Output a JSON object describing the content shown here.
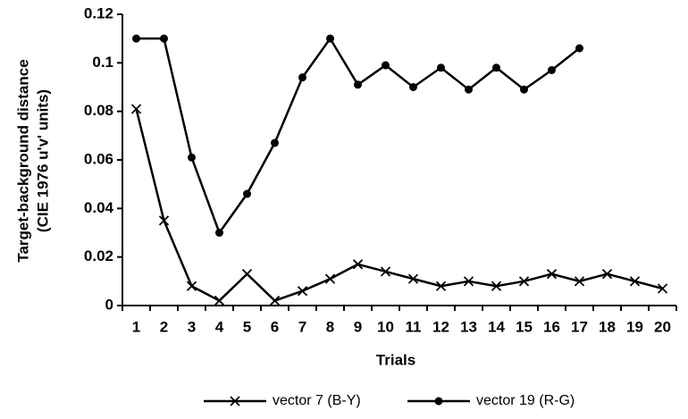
{
  "chart_data": {
    "type": "line",
    "xlabel": "Trials",
    "ylabel": [
      "Target-background distance",
      "(CIE 1976 u'v' units)"
    ],
    "categories": [
      1,
      2,
      3,
      4,
      5,
      6,
      7,
      8,
      9,
      10,
      11,
      12,
      13,
      14,
      15,
      16,
      17,
      18,
      19,
      20
    ],
    "ylim": [
      0,
      0.12
    ],
    "yticks": [
      0,
      0.02,
      0.04,
      0.06,
      0.08,
      0.1,
      0.12
    ],
    "legend": "bottom",
    "series": [
      {
        "name": "vector 7 (B-Y)",
        "color": "#000000",
        "marker": "x",
        "values": [
          0.081,
          0.035,
          0.008,
          0.002,
          0.013,
          0.002,
          0.006,
          0.011,
          0.017,
          0.014,
          0.011,
          0.008,
          0.01,
          0.008,
          0.01,
          0.013,
          0.01,
          0.013,
          0.01,
          0.007
        ]
      },
      {
        "name": "vector 19 (R-G)",
        "color": "#000000",
        "marker": "circle",
        "values": [
          0.11,
          0.11,
          0.061,
          0.03,
          0.046,
          0.067,
          0.094,
          0.11,
          0.091,
          0.099,
          0.09,
          0.098,
          0.089,
          0.098,
          0.089,
          0.097,
          0.106,
          null,
          null,
          null
        ]
      }
    ]
  }
}
